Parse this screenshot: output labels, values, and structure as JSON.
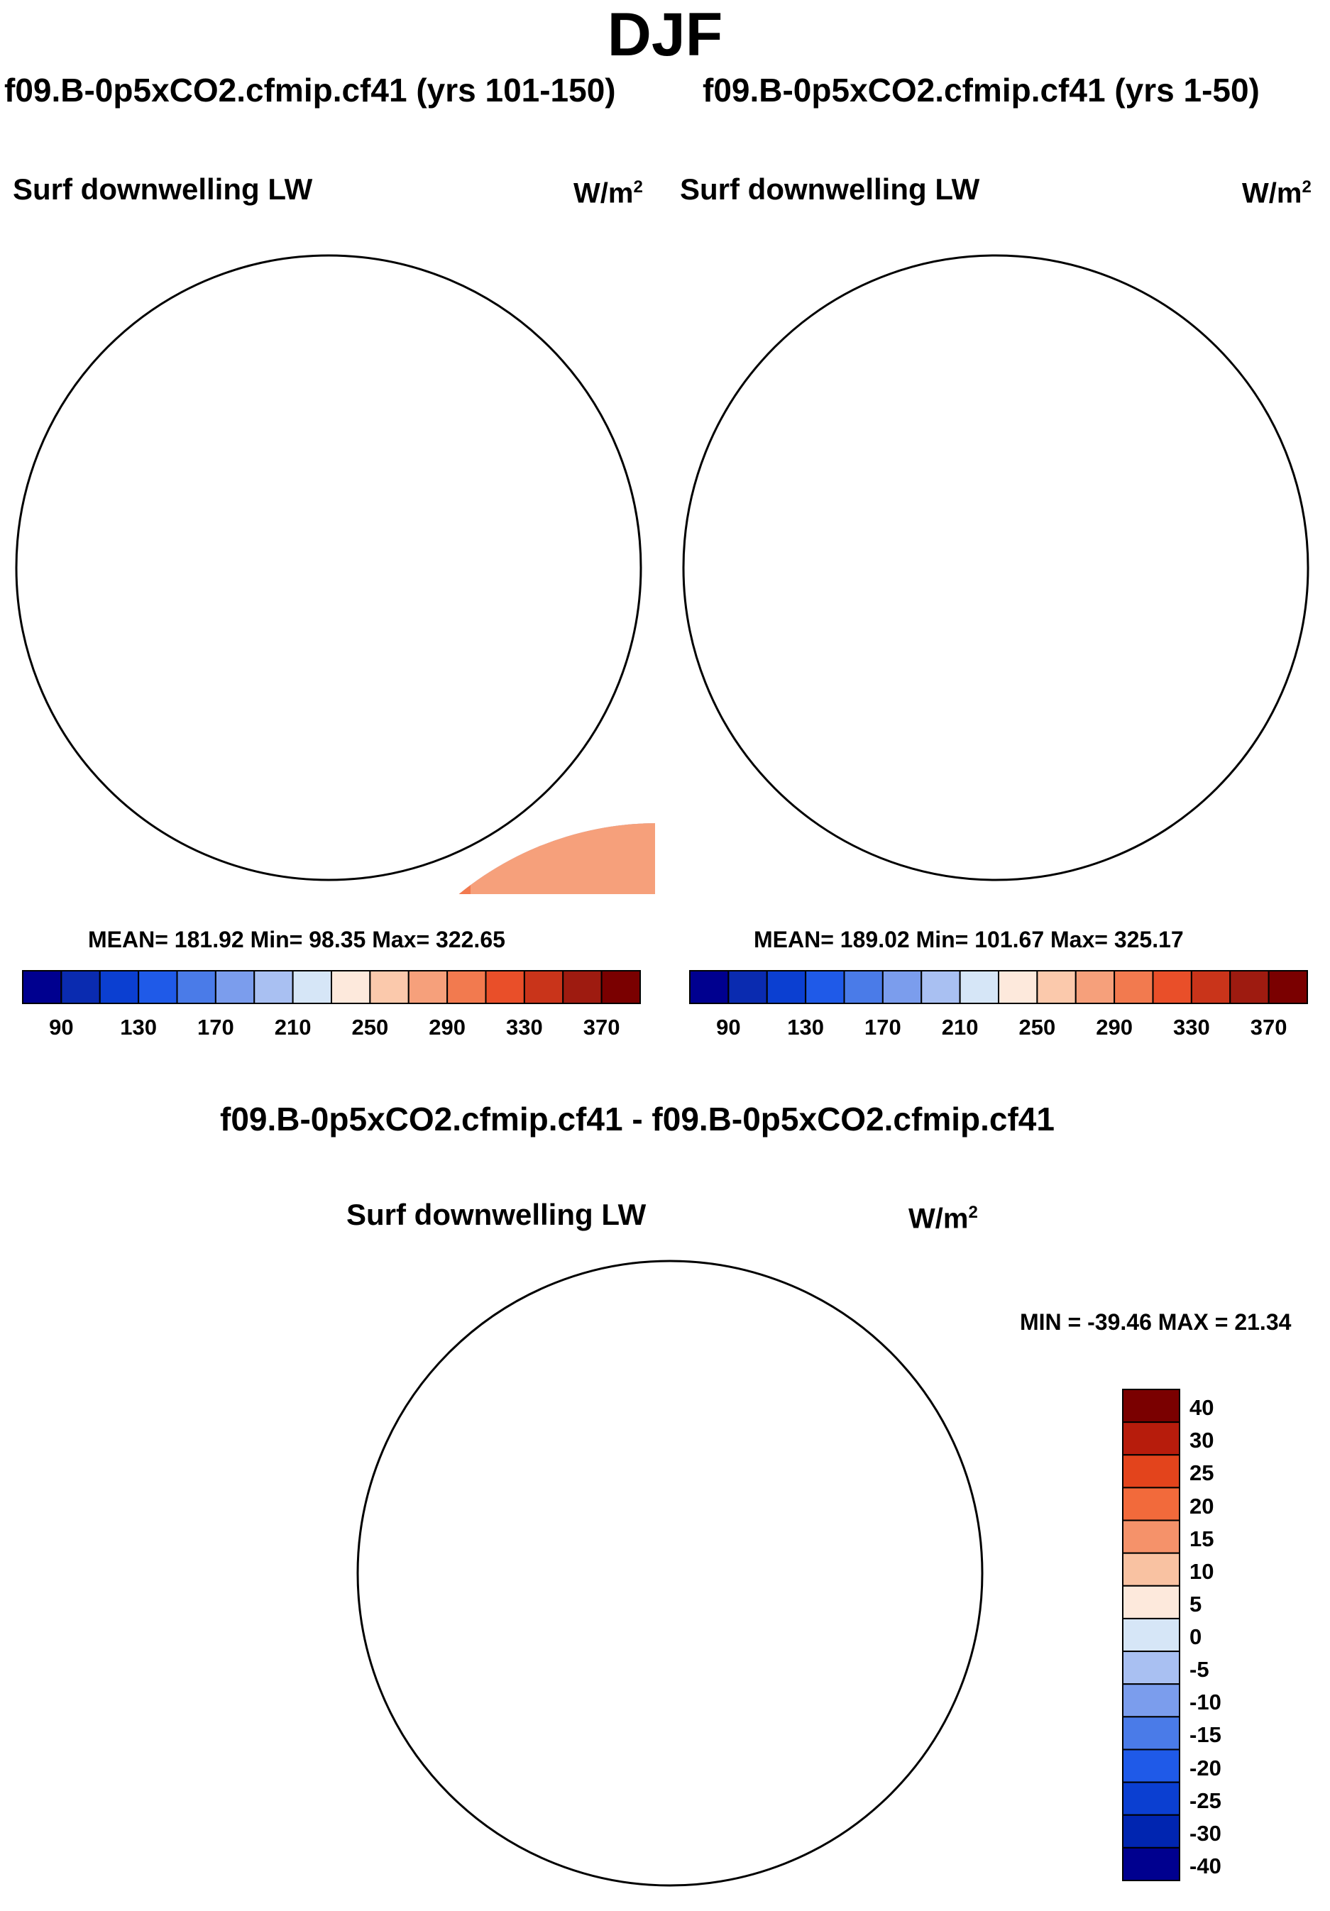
{
  "season": "DJF",
  "panels": [
    {
      "title": "f09.B-0p5xCO2.cfmip.cf41 (yrs 101-150)",
      "variable": "Surf downwelling LW",
      "units_base": "W/m",
      "units_exp": "2",
      "stats": "MEAN= 181.92  Min=  98.35  Max= 322.65"
    },
    {
      "title": "f09.B-0p5xCO2.cfmip.cf41 (yrs 1-50)",
      "variable": "Surf downwelling LW",
      "units_base": "W/m",
      "units_exp": "2",
      "stats": "MEAN= 189.02  Min= 101.67  Max= 325.17"
    }
  ],
  "difference": {
    "title": "f09.B-0p5xCO2.cfmip.cf41 - f09.B-0p5xCO2.cfmip.cf41",
    "variable": "Surf downwelling LW",
    "units_base": "W/m",
    "units_exp": "2",
    "stats": "MIN = -39.46 MAX =  21.34"
  },
  "abs_colorbar": {
    "colors": [
      "#00008f",
      "#0a2bb0",
      "#0b3fd1",
      "#1f5ae8",
      "#4a7be8",
      "#7b9ded",
      "#a9c0f2",
      "#d6e6f7",
      "#fde9dc",
      "#fbc9ac",
      "#f6a07b",
      "#f27a4f",
      "#e94f29",
      "#c9341a",
      "#9e1b10",
      "#7a0000"
    ],
    "labels": [
      "90",
      "130",
      "170",
      "210",
      "250",
      "290",
      "330",
      "370"
    ]
  },
  "diff_colorbar": {
    "colors": [
      "#7a0000",
      "#b71c0c",
      "#e3441c",
      "#f26a3b",
      "#f5926a",
      "#f9c2a2",
      "#fde9dc",
      "#d6e6f7",
      "#a9c0f2",
      "#7b9ded",
      "#4a7be8",
      "#1f5ae8",
      "#0b3fd1",
      "#0025b0",
      "#00008f"
    ],
    "labels": [
      "40",
      "30",
      "25",
      "20",
      "15",
      "10",
      "5",
      "0",
      "-5",
      "-10",
      "-15",
      "-20",
      "-25",
      "-30",
      "-40"
    ]
  }
}
